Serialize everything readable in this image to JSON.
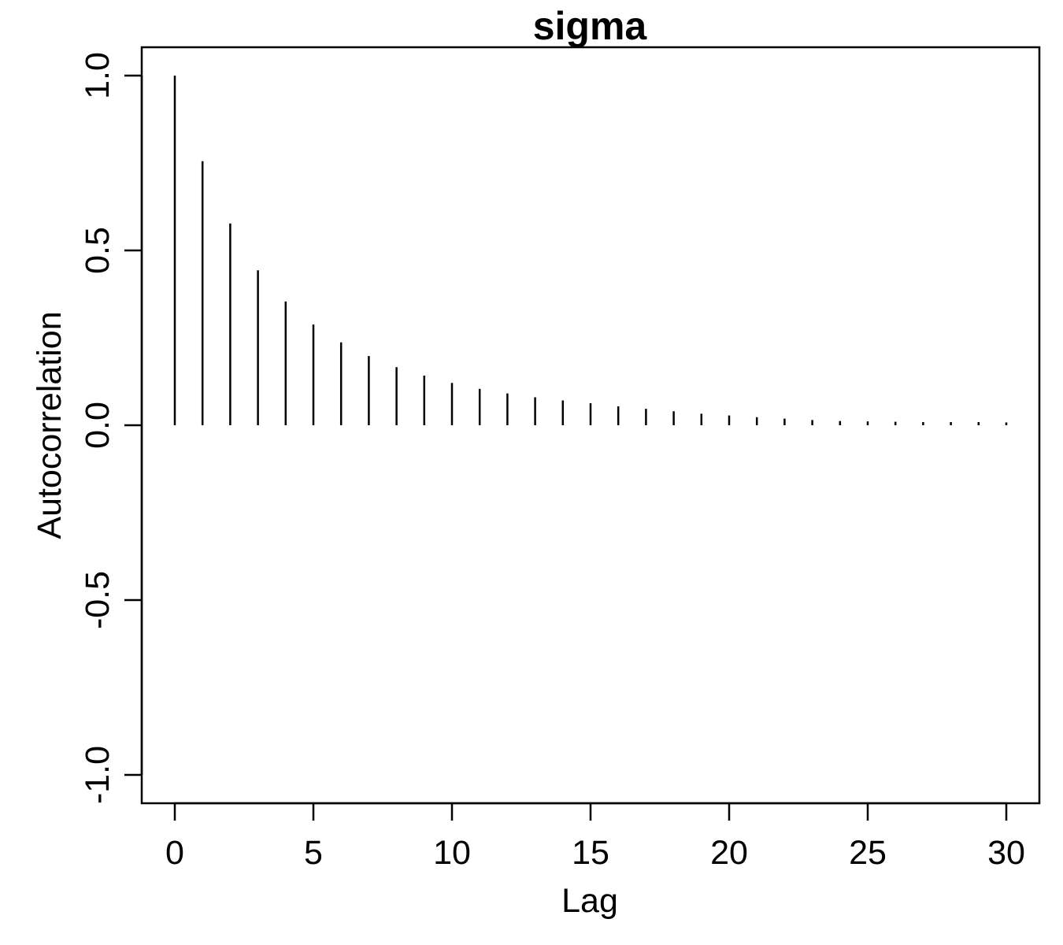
{
  "chart_data": {
    "type": "bar",
    "title": "sigma",
    "xlabel": "Lag",
    "ylabel": "Autocorrelation",
    "xlim": [
      0,
      30
    ],
    "ylim": [
      -1.0,
      1.0
    ],
    "x_ticks": [
      0,
      5,
      10,
      15,
      20,
      25,
      30
    ],
    "x_tick_labels": [
      "0",
      "5",
      "10",
      "15",
      "20",
      "25",
      "30"
    ],
    "y_ticks": [
      -1.0,
      -0.5,
      0.0,
      0.5,
      1.0
    ],
    "y_tick_labels": [
      "-1.0",
      "-0.5",
      "0.0",
      "0.5",
      "1.0"
    ],
    "grid": false,
    "lags": [
      0,
      1,
      2,
      3,
      4,
      5,
      6,
      7,
      8,
      9,
      10,
      11,
      12,
      13,
      14,
      15,
      16,
      17,
      18,
      19,
      20,
      21,
      22,
      23,
      24,
      25,
      26,
      27,
      28,
      29,
      30
    ],
    "values": [
      1.0,
      0.755,
      0.577,
      0.443,
      0.354,
      0.288,
      0.237,
      0.198,
      0.166,
      0.142,
      0.121,
      0.104,
      0.091,
      0.08,
      0.071,
      0.063,
      0.054,
      0.047,
      0.04,
      0.033,
      0.028,
      0.023,
      0.019,
      0.015,
      0.012,
      0.011,
      0.01,
      0.009,
      0.009,
      0.009,
      0.008
    ]
  }
}
